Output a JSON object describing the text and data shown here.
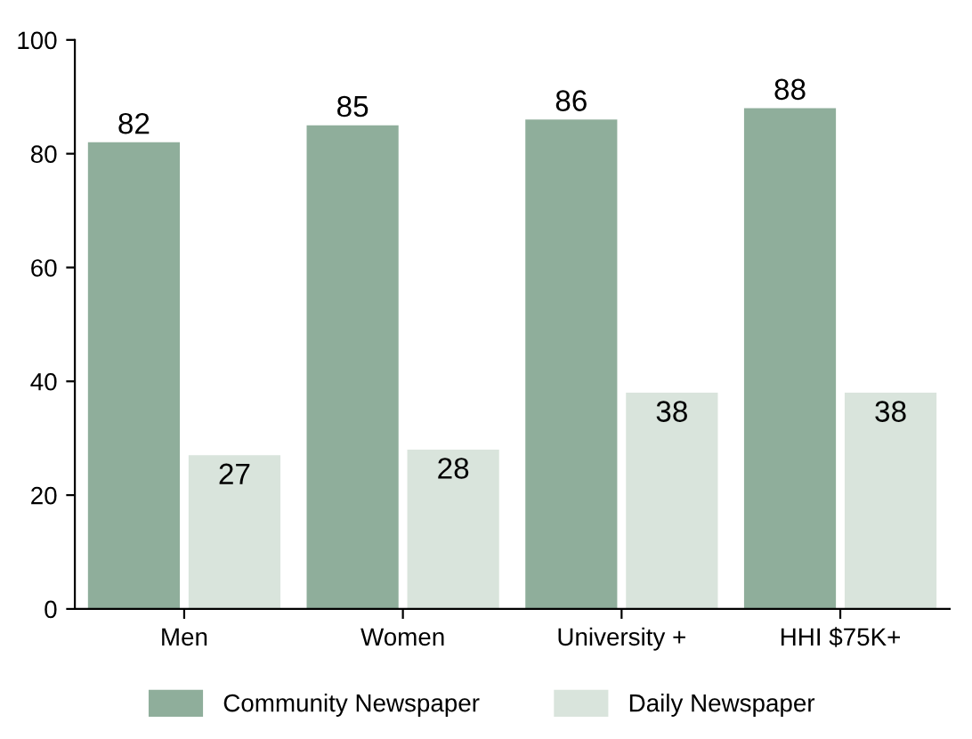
{
  "chart_data": {
    "type": "bar",
    "categories": [
      "Men",
      "Women",
      "University +",
      "HHI $75K+"
    ],
    "series": [
      {
        "name": "Community Newspaper",
        "color": "#8fae9b",
        "values": [
          82,
          85,
          86,
          88
        ]
      },
      {
        "name": "Daily Newspaper",
        "color": "#d9e4dc",
        "values": [
          27,
          28,
          38,
          38
        ]
      }
    ],
    "ylim": [
      0,
      100
    ],
    "yticks": [
      0,
      20,
      40,
      60,
      80,
      100
    ],
    "data_labels": true,
    "legend": "bottom",
    "grid": false
  }
}
